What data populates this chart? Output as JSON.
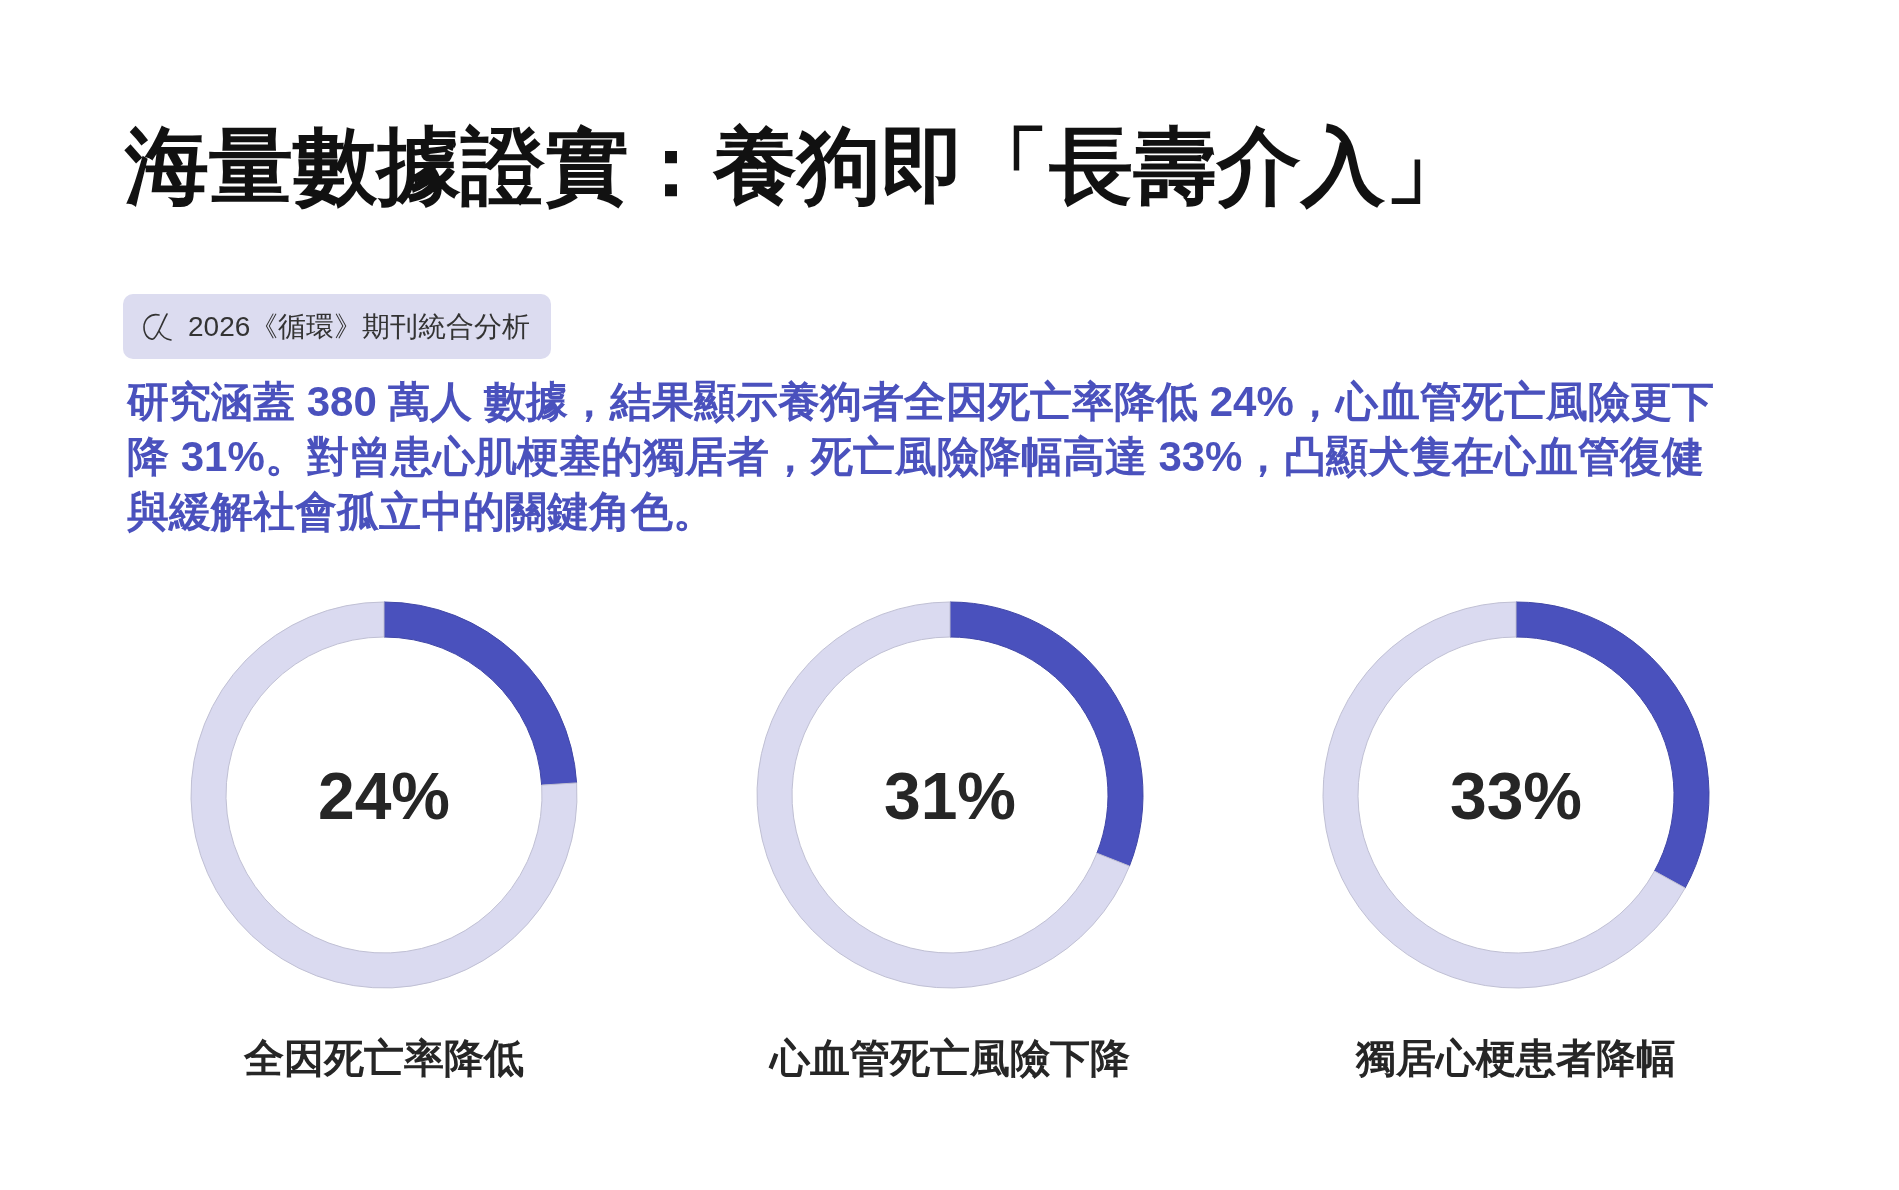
{
  "chart_data": [
    {
      "type": "other",
      "title": "海量數據證實：養狗即「長壽介入」",
      "subtitle": "研究涵蓋 380 萬人 數據，結果顯示養狗者全因死亡率降低 24%，心血管死亡風險更下降 31%。對曾患心肌梗塞的獨居者，死亡風險降幅高達 33%，凸顯犬隻在心血管復健與緩解社會孤立中的關鍵角色。",
      "annotations": [
        "2026《循環》期刊統合分析"
      ]
    },
    {
      "type": "donut",
      "title": "全因死亡率降低",
      "categories": [
        null,
        null
      ],
      "values": [
        24,
        76
      ],
      "colors": [
        "#4a51bd",
        "#dadaf0"
      ],
      "annotations": [
        "24%"
      ]
    },
    {
      "type": "donut",
      "title": "心血管死亡風險下降",
      "categories": [
        null,
        null
      ],
      "values": [
        31,
        69
      ],
      "colors": [
        "#4a51bd",
        "#dadaf0"
      ],
      "annotations": [
        "31%"
      ]
    },
    {
      "type": "donut",
      "title": "獨居心梗患者降幅",
      "categories": [
        null,
        null
      ],
      "values": [
        33,
        67
      ],
      "colors": [
        "#4a51bd",
        "#dadaf0"
      ],
      "annotations": [
        "33%"
      ]
    }
  ]
}
